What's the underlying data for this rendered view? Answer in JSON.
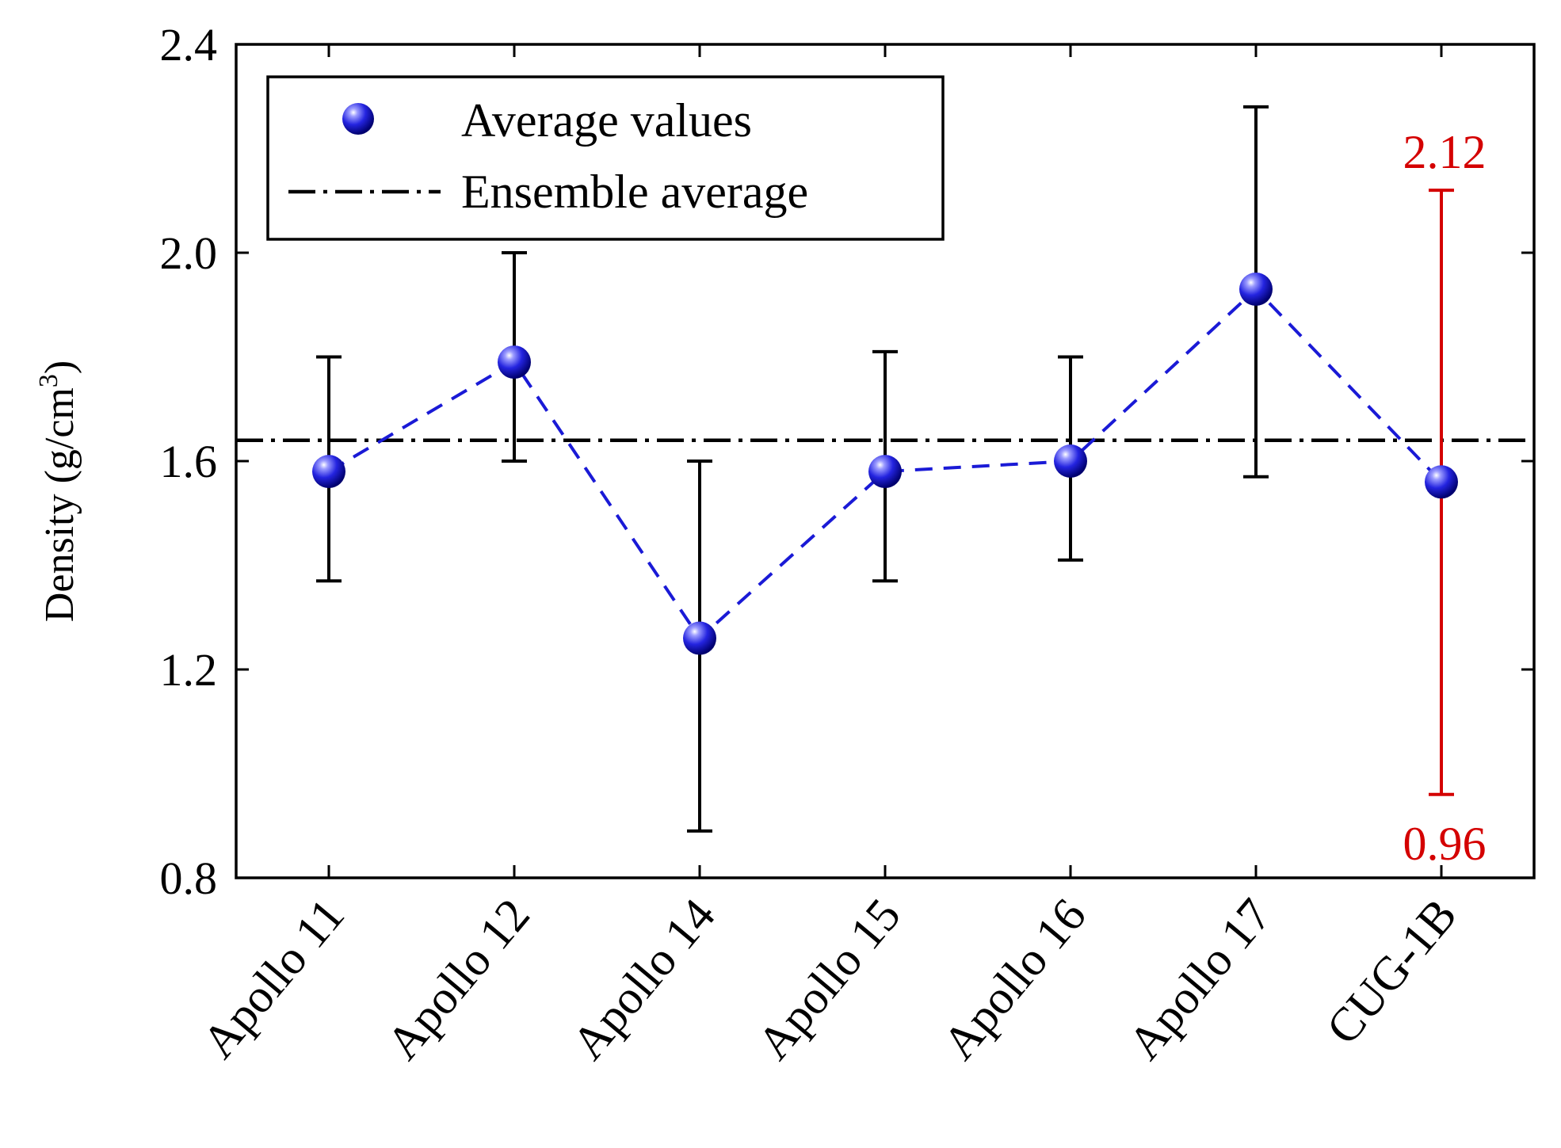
{
  "chart_data": {
    "type": "scatter",
    "categories": [
      "Apollo 11",
      "Apollo 12",
      "Apollo 14",
      "Apollo 15",
      "Apollo 16",
      "Apollo 17",
      "CUG-1B"
    ],
    "series": [
      {
        "name": "Average values",
        "values": [
          1.58,
          1.79,
          1.26,
          1.58,
          1.6,
          1.93,
          1.56
        ],
        "error_low": [
          1.37,
          1.6,
          0.89,
          1.37,
          1.41,
          1.57,
          0.96
        ],
        "error_high": [
          1.8,
          2.0,
          1.6,
          1.81,
          1.8,
          2.28,
          2.12
        ],
        "error_colors": [
          "#000000",
          "#000000",
          "#000000",
          "#000000",
          "#000000",
          "#000000",
          "#d40000"
        ]
      }
    ],
    "ensemble_average": 1.64,
    "ensemble_label": "Ensemble average",
    "ylabel_main": "Density (g/cm",
    "ylabel_sup": "3",
    "ylabel_close": ")",
    "ylim": [
      0.8,
      2.4
    ],
    "yticks": [
      "0.8",
      "1.2",
      "1.6",
      "2.0",
      "2.4"
    ],
    "ytick_values": [
      0.8,
      1.2,
      1.6,
      2.0,
      2.4
    ],
    "annotations": [
      {
        "text": "2.12",
        "value": 2.12,
        "category": "CUG-1B",
        "position": "above"
      },
      {
        "text": "0.96",
        "value": 0.96,
        "category": "CUG-1B",
        "position": "below"
      }
    ],
    "legend": {
      "position": "top-left",
      "entries": [
        "Average values",
        "Ensemble average"
      ]
    },
    "colors": {
      "marker": "#1f1fd0",
      "marker_dark": "#00008b",
      "line": "#1a1ad6",
      "axis": "#000000",
      "highlight": "#d40000"
    }
  }
}
